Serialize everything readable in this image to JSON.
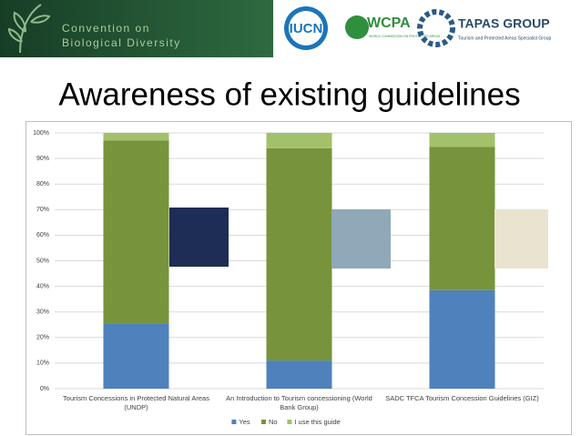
{
  "header": {
    "cbd_line1": "Convention on",
    "cbd_line2": "Biological Diversity",
    "iucn": "IUCN",
    "wcpa": "WCPA",
    "wcpa_sub": "WORLD COMMISSION ON PROTECTED AREAS",
    "tapas": "TAPAS GROUP",
    "tapas_sub": "Tourism and Protected Areas Specialist Group"
  },
  "chart_data": {
    "type": "stacked_bar",
    "title": "Awareness of existing guidelines",
    "categories": [
      "Tourism Concessions in Protected Natural Areas (UNDP)",
      "An Introduction to Tourism concessioning (World Bank Group)",
      "SADC TFCA Tourism Concession Guidelines (GIZ)"
    ],
    "series": [
      {
        "name": "Yes",
        "color": "#4f81bd",
        "values": [
          25.5,
          11,
          38.5
        ]
      },
      {
        "name": "No",
        "color": "#77933c",
        "values": [
          71.5,
          83,
          56
        ]
      },
      {
        "name": "I use this guide",
        "color": "#a3c16a",
        "values": [
          3,
          6,
          5.5
        ]
      }
    ],
    "ylim": [
      0,
      100
    ],
    "yticks": [
      {
        "value": 0,
        "label": "0%"
      },
      {
        "value": 10,
        "label": "10%"
      },
      {
        "value": 20,
        "label": "20%"
      },
      {
        "value": 30,
        "label": "30%"
      },
      {
        "value": 40,
        "label": "40%"
      },
      {
        "value": 50,
        "label": "50%"
      },
      {
        "value": 60,
        "label": "60%"
      },
      {
        "value": 70,
        "label": "70%"
      },
      {
        "value": 80,
        "label": "80%"
      },
      {
        "value": 90,
        "label": "90%"
      },
      {
        "value": 100,
        "label": "100%"
      }
    ],
    "grid": true,
    "legend": "bottom"
  }
}
